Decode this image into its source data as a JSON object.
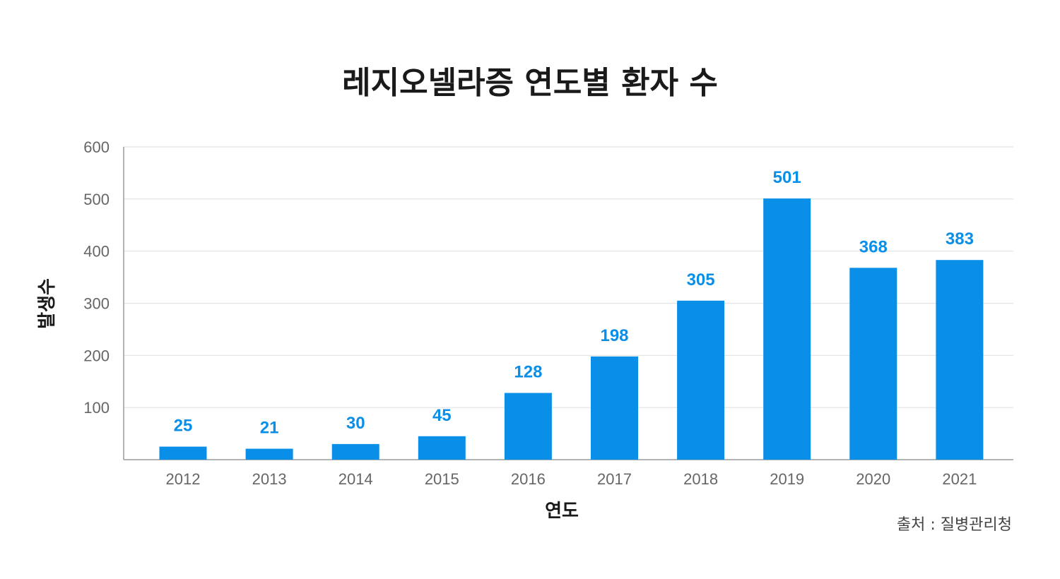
{
  "chart_data": {
    "type": "bar",
    "title": "레지오넬라증 연도별 환자 수",
    "xlabel": "연도",
    "ylabel": "발생수",
    "ylim": [
      0,
      600
    ],
    "yticks": [
      100,
      200,
      300,
      400,
      500,
      600
    ],
    "categories": [
      "2012",
      "2013",
      "2014",
      "2015",
      "2016",
      "2017",
      "2018",
      "2019",
      "2020",
      "2021"
    ],
    "values": [
      25,
      21,
      30,
      45,
      128,
      198,
      305,
      501,
      368,
      383
    ],
    "bar_color": "#0a8fe8",
    "grid": true,
    "source": "출처 : 질병관리청"
  }
}
